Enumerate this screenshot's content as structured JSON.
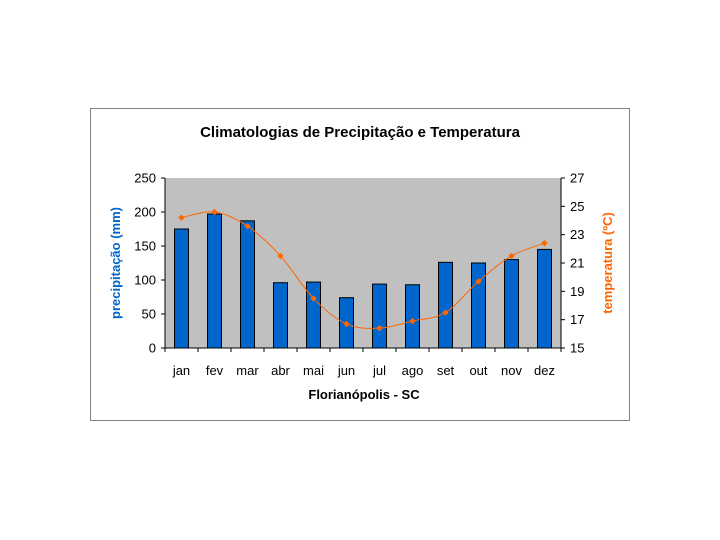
{
  "chart_data": {
    "type": "bar",
    "title": "Climatologias de Precipitação e Temperatura",
    "xlabel": "Florianópolis - SC",
    "ylabel": "precipitação (mm)",
    "y2label": "temperatura (ºC)",
    "categories": [
      "jan",
      "fev",
      "mar",
      "abr",
      "mai",
      "jun",
      "jul",
      "ago",
      "set",
      "out",
      "nov",
      "dez"
    ],
    "ylim": [
      0,
      250
    ],
    "yticks": [
      "0",
      "50",
      "100",
      "150",
      "200",
      "250"
    ],
    "y2lim": [
      15,
      27
    ],
    "y2ticks": [
      "15",
      "17",
      "19",
      "21",
      "23",
      "25",
      "27"
    ],
    "grid": false,
    "series": [
      {
        "name": "precipitação (mm)",
        "type": "bar",
        "axis": "left",
        "values": [
          175,
          197,
          187,
          96,
          97,
          74,
          94,
          93,
          126,
          125,
          130,
          145
        ]
      },
      {
        "name": "temperatura (ºC)",
        "type": "line",
        "axis": "right",
        "values": [
          24.2,
          24.6,
          23.6,
          21.5,
          18.5,
          16.7,
          16.4,
          16.9,
          17.5,
          19.7,
          21.5,
          22.4
        ]
      }
    ],
    "colors": {
      "bar": "#0066CC",
      "line": "#FF6600",
      "plot_bg": "#C0C0C0",
      "ylabel": "#0066CC",
      "y2label": "#FF6600"
    }
  }
}
